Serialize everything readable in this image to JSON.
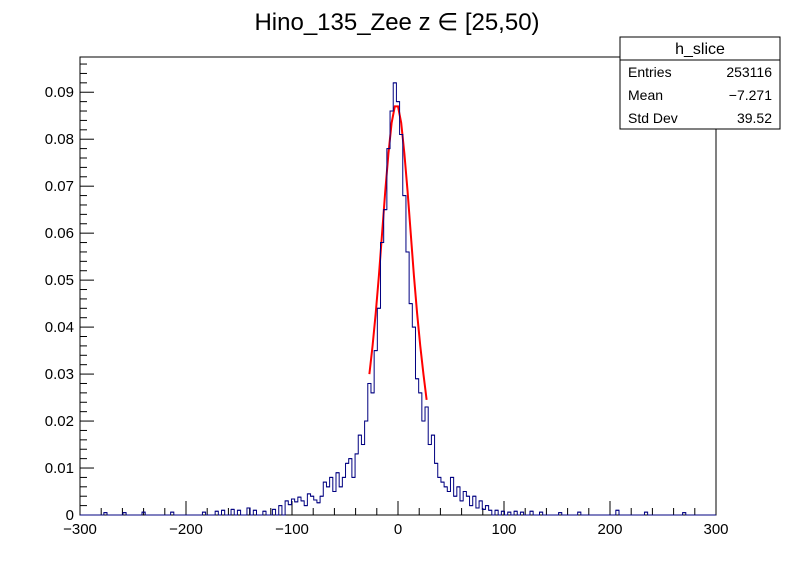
{
  "chart_data": {
    "type": "histogram",
    "title": "Hino_135_Zee z  ∈ [25,50)",
    "xlabel": "",
    "ylabel": "",
    "xlim": [
      -300,
      300
    ],
    "ylim": [
      0,
      0.0975
    ],
    "x_ticks": [
      -300,
      -200,
      -100,
      0,
      100,
      200,
      300
    ],
    "y_ticks": [
      0,
      0.01,
      0.02,
      0.03,
      0.04,
      0.05,
      0.06,
      0.07,
      0.08,
      0.09
    ],
    "x_tick_labels": [
      "−300",
      "−200",
      "−100",
      "0",
      "100",
      "200",
      "300"
    ],
    "y_tick_labels": [
      "0",
      "0.01",
      "0.02",
      "0.03",
      "0.04",
      "0.05",
      "0.06",
      "0.07",
      "0.08",
      "0.09"
    ],
    "grid": false,
    "histogram": {
      "name": "h_slice",
      "color": "#000080",
      "bin_width": 3,
      "bins": [
        [
          -276,
          0.0005
        ],
        [
          -258,
          0.0005
        ],
        [
          -240,
          0.0006
        ],
        [
          -213,
          0.0006
        ],
        [
          -183,
          0.0006
        ],
        [
          -171,
          0.0008
        ],
        [
          -165,
          0.001
        ],
        [
          -156,
          0.0012
        ],
        [
          -150,
          0.001
        ],
        [
          -141,
          0.0015
        ],
        [
          -135,
          0.001
        ],
        [
          -126,
          0.0008
        ],
        [
          -117,
          0.0012
        ],
        [
          -111,
          0.002
        ],
        [
          -105,
          0.003
        ],
        [
          -102,
          0.0022
        ],
        [
          -99,
          0.0034
        ],
        [
          -96,
          0.0028
        ],
        [
          -93,
          0.0038
        ],
        [
          -90,
          0.003
        ],
        [
          -87,
          0.002
        ],
        [
          -84,
          0.0045
        ],
        [
          -81,
          0.004
        ],
        [
          -78,
          0.0032
        ],
        [
          -75,
          0.0026
        ],
        [
          -72,
          0.004
        ],
        [
          -69,
          0.007
        ],
        [
          -66,
          0.006
        ],
        [
          -63,
          0.008
        ],
        [
          -60,
          0.005
        ],
        [
          -57,
          0.009
        ],
        [
          -54,
          0.006
        ],
        [
          -51,
          0.008
        ],
        [
          -48,
          0.011
        ],
        [
          -45,
          0.012
        ],
        [
          -42,
          0.008
        ],
        [
          -39,
          0.013
        ],
        [
          -36,
          0.017
        ],
        [
          -33,
          0.015
        ],
        [
          -30,
          0.02
        ],
        [
          -27,
          0.028
        ],
        [
          -24,
          0.026
        ],
        [
          -21,
          0.035
        ],
        [
          -18,
          0.044
        ],
        [
          -15,
          0.058
        ],
        [
          -12,
          0.065
        ],
        [
          -9,
          0.078
        ],
        [
          -6,
          0.086
        ],
        [
          -3,
          0.092
        ],
        [
          0,
          0.088
        ],
        [
          3,
          0.081
        ],
        [
          6,
          0.068
        ],
        [
          9,
          0.056
        ],
        [
          12,
          0.045
        ],
        [
          15,
          0.04
        ],
        [
          18,
          0.029
        ],
        [
          21,
          0.026
        ],
        [
          24,
          0.02
        ],
        [
          27,
          0.023
        ],
        [
          30,
          0.015
        ],
        [
          33,
          0.017
        ],
        [
          36,
          0.011
        ],
        [
          39,
          0.008
        ],
        [
          42,
          0.007
        ],
        [
          45,
          0.006
        ],
        [
          48,
          0.005
        ],
        [
          51,
          0.008
        ],
        [
          54,
          0.004
        ],
        [
          57,
          0.006
        ],
        [
          60,
          0.003
        ],
        [
          63,
          0.005
        ],
        [
          66,
          0.004
        ],
        [
          69,
          0.002
        ],
        [
          72,
          0.004
        ],
        [
          75,
          0.0015
        ],
        [
          78,
          0.003
        ],
        [
          81,
          0.0012
        ],
        [
          84,
          0.002
        ],
        [
          87,
          0.001
        ],
        [
          93,
          0.001
        ],
        [
          99,
          0.0008
        ],
        [
          105,
          0.0006
        ],
        [
          111,
          0.0008
        ],
        [
          117,
          0.0006
        ],
        [
          126,
          0.0008
        ],
        [
          135,
          0.0006
        ],
        [
          153,
          0.0005
        ],
        [
          171,
          0.0006
        ],
        [
          207,
          0.001
        ],
        [
          234,
          0.0006
        ],
        [
          270,
          0.0005
        ]
      ]
    },
    "fit": {
      "name": "gaus",
      "color": "#ff0000",
      "x": [
        -27,
        -24,
        -21,
        -18,
        -15,
        -12,
        -9,
        -6,
        -3,
        0,
        3,
        6,
        9,
        12,
        15,
        18,
        21,
        24,
        27
      ],
      "y": [
        0.03,
        0.036,
        0.043,
        0.051,
        0.06,
        0.069,
        0.077,
        0.0835,
        0.087,
        0.087,
        0.0835,
        0.077,
        0.069,
        0.06,
        0.051,
        0.043,
        0.036,
        0.03,
        0.0245
      ]
    },
    "legend_position": "top-right"
  },
  "stats_box": {
    "title": "h_slice",
    "rows": [
      {
        "label": "Entries",
        "value": "253116"
      },
      {
        "label": "Mean",
        "value": "−7.271"
      },
      {
        "label": "Std Dev",
        "value": "39.52"
      }
    ]
  }
}
